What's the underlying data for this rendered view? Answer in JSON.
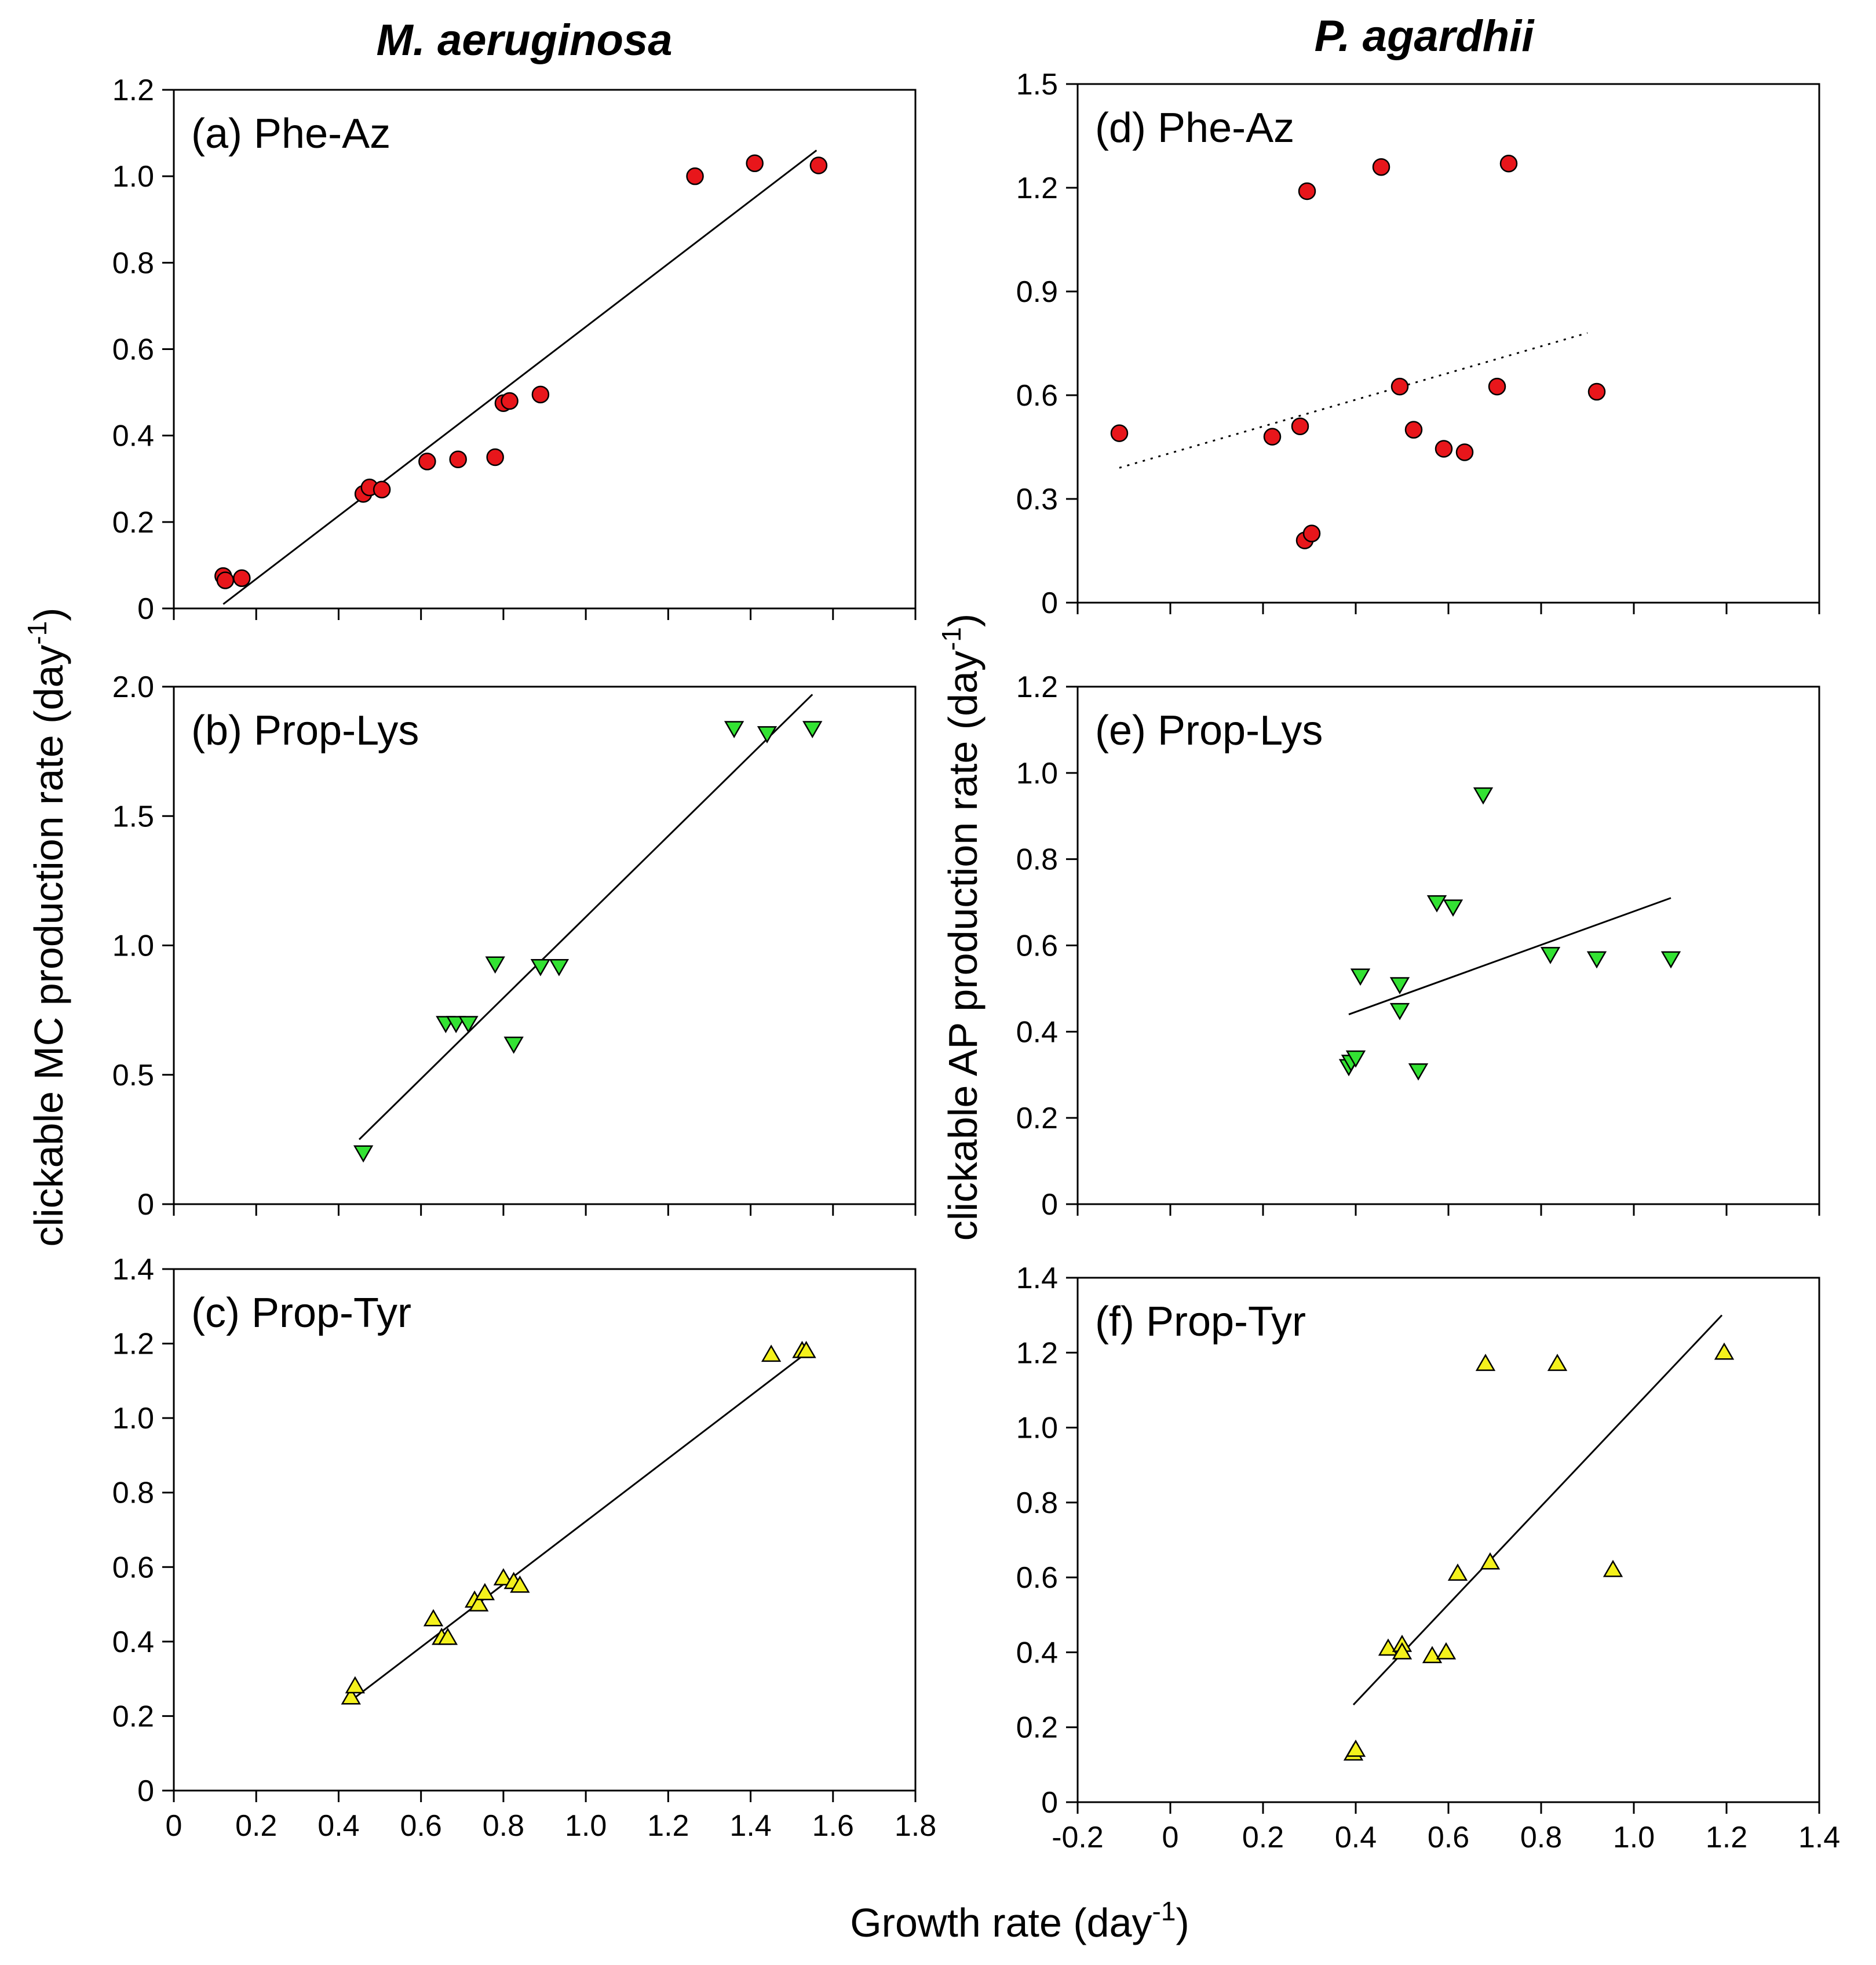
{
  "figure": {
    "column_titles": [
      "M. aeruginosa",
      "P. agardhii"
    ],
    "left_ylabel": {
      "text": "clickable MC production rate (day",
      "sup": "-1",
      "close": ")"
    },
    "right_ylabel": {
      "text": "clickable AP production rate (day",
      "sup": "-1",
      "close": ")"
    },
    "xlabel": {
      "text": "Growth rate (day",
      "sup": "-1",
      "close": ")"
    },
    "colors": {
      "phe_az": "#e8161b",
      "prop_lys": "#33e233",
      "prop_tyr": "#f4f11c"
    }
  },
  "chart_data": [
    {
      "id": "a",
      "type": "scatter",
      "title": "(a) Phe-Az",
      "marker": "circle",
      "color": "#e8161b",
      "xlim": [
        0,
        1.8
      ],
      "ylim": [
        0,
        1.2
      ],
      "xticks": [
        0,
        0.2,
        0.4,
        0.6,
        0.8,
        1.0,
        1.2,
        1.4,
        1.6,
        1.8
      ],
      "xtick_labels": [],
      "yticks": [
        0,
        0.2,
        0.4,
        0.6,
        0.8,
        1.0,
        1.2
      ],
      "ytick_labels": [
        "0",
        "0.2",
        "0.4",
        "0.6",
        "0.8",
        "1.0",
        "1.2"
      ],
      "x": [
        0.12,
        0.125,
        0.165,
        0.46,
        0.475,
        0.505,
        0.615,
        0.69,
        0.78,
        0.8,
        0.815,
        0.89,
        1.265,
        1.41,
        1.565
      ],
      "y": [
        0.075,
        0.065,
        0.07,
        0.265,
        0.28,
        0.275,
        0.34,
        0.345,
        0.35,
        0.475,
        0.48,
        0.495,
        1.0,
        1.03,
        1.025
      ],
      "fit": {
        "style": "solid",
        "x": [
          0.12,
          1.56
        ],
        "y": [
          0.01,
          1.06
        ]
      }
    },
    {
      "id": "b",
      "type": "scatter",
      "title": "(b) Prop-Lys",
      "marker": "triangle-down",
      "color": "#33e233",
      "xlim": [
        0,
        1.8
      ],
      "ylim": [
        0,
        2.0
      ],
      "xticks": [
        0,
        0.2,
        0.4,
        0.6,
        0.8,
        1.0,
        1.2,
        1.4,
        1.6,
        1.8
      ],
      "xtick_labels": [],
      "yticks": [
        0,
        0.5,
        1.0,
        1.5,
        2.0
      ],
      "ytick_labels": [
        "0",
        "0.5",
        "1.0",
        "1.5",
        "2.0"
      ],
      "x": [
        0.46,
        0.66,
        0.685,
        0.715,
        0.78,
        0.825,
        0.89,
        0.935,
        1.36,
        1.44,
        1.55
      ],
      "y": [
        0.2,
        0.7,
        0.7,
        0.7,
        0.93,
        0.62,
        0.92,
        0.92,
        1.84,
        1.82,
        1.84
      ],
      "fit": {
        "style": "solid",
        "x": [
          0.45,
          1.55
        ],
        "y": [
          0.25,
          1.97
        ]
      }
    },
    {
      "id": "c",
      "type": "scatter",
      "title": "(c) Prop-Tyr",
      "marker": "triangle-up",
      "color": "#f4f11c",
      "xlim": [
        0,
        1.8
      ],
      "ylim": [
        0,
        1.4
      ],
      "xticks": [
        0,
        0.2,
        0.4,
        0.6,
        0.8,
        1.0,
        1.2,
        1.4,
        1.6,
        1.8
      ],
      "xtick_labels": [
        "0",
        "0.2",
        "0.4",
        "0.6",
        "0.8",
        "1.0",
        "1.2",
        "1.4",
        "1.6",
        "1.8"
      ],
      "yticks": [
        0,
        0.2,
        0.4,
        0.6,
        0.8,
        1.0,
        1.2,
        1.4
      ],
      "ytick_labels": [
        "0",
        "0.2",
        "0.4",
        "0.6",
        "0.8",
        "1.0",
        "1.2",
        "1.4"
      ],
      "x": [
        0.43,
        0.44,
        0.63,
        0.65,
        0.665,
        0.73,
        0.74,
        0.755,
        0.8,
        0.825,
        0.84,
        1.45,
        1.525,
        1.535
      ],
      "y": [
        0.25,
        0.28,
        0.46,
        0.41,
        0.41,
        0.51,
        0.5,
        0.53,
        0.57,
        0.56,
        0.55,
        1.17,
        1.18,
        1.18
      ],
      "fit": {
        "style": "solid",
        "x": [
          0.44,
          1.53
        ],
        "y": [
          0.25,
          1.17
        ]
      }
    },
    {
      "id": "d",
      "type": "scatter",
      "title": "(d) Phe-Az",
      "marker": "circle",
      "color": "#e8161b",
      "xlim": [
        -0.2,
        1.4
      ],
      "ylim": [
        0,
        1.5
      ],
      "xticks": [
        -0.2,
        0,
        0.2,
        0.4,
        0.6,
        0.8,
        1.0,
        1.2,
        1.4
      ],
      "xtick_labels": [],
      "yticks": [
        0,
        0.3,
        0.6,
        0.9,
        1.2,
        1.5
      ],
      "ytick_labels": [
        "0",
        "0.3",
        "0.6",
        "0.9",
        "1.2",
        "1.5"
      ],
      "x": [
        -0.11,
        0.22,
        0.28,
        0.29,
        0.295,
        0.305,
        0.455,
        0.495,
        0.525,
        0.59,
        0.635,
        0.705,
        0.73,
        0.92
      ],
      "y": [
        0.49,
        0.48,
        0.51,
        0.18,
        1.19,
        0.2,
        1.26,
        0.625,
        0.5,
        0.445,
        0.435,
        0.625,
        1.27,
        0.61
      ],
      "fit": {
        "style": "dotted",
        "x": [
          -0.11,
          0.9
        ],
        "y": [
          0.39,
          0.78
        ]
      }
    },
    {
      "id": "e",
      "type": "scatter",
      "title": "(e) Prop-Lys",
      "marker": "triangle-down",
      "color": "#33e233",
      "xlim": [
        -0.2,
        1.4
      ],
      "ylim": [
        0,
        1.2
      ],
      "xticks": [
        -0.2,
        0,
        0.2,
        0.4,
        0.6,
        0.8,
        1.0,
        1.2,
        1.4
      ],
      "xtick_labels": [],
      "yticks": [
        0,
        0.2,
        0.4,
        0.6,
        0.8,
        1.0,
        1.2
      ],
      "ytick_labels": [
        "0",
        "0.2",
        "0.4",
        "0.6",
        "0.8",
        "1.0",
        "1.2"
      ],
      "x": [
        0.385,
        0.39,
        0.4,
        0.41,
        0.495,
        0.495,
        0.535,
        0.575,
        0.61,
        0.675,
        0.82,
        0.92,
        1.08
      ],
      "y": [
        0.32,
        0.33,
        0.34,
        0.53,
        0.51,
        0.45,
        0.31,
        0.7,
        0.69,
        0.95,
        0.58,
        0.57,
        0.57
      ],
      "fit": {
        "style": "solid",
        "x": [
          0.385,
          1.08
        ],
        "y": [
          0.44,
          0.71
        ]
      }
    },
    {
      "id": "f",
      "type": "scatter",
      "title": "(f) Prop-Tyr",
      "marker": "triangle-up",
      "color": "#f4f11c",
      "xlim": [
        -0.2,
        1.4
      ],
      "ylim": [
        0,
        1.4
      ],
      "xticks": [
        -0.2,
        0,
        0.2,
        0.4,
        0.6,
        0.8,
        1.0,
        1.2,
        1.4
      ],
      "xtick_labels": [
        "-0.2",
        "0",
        "0.2",
        "0.4",
        "0.6",
        "0.8",
        "1.0",
        "1.2",
        "1.4"
      ],
      "yticks": [
        0,
        0.2,
        0.4,
        0.6,
        0.8,
        1.0,
        1.2,
        1.4
      ],
      "ytick_labels": [
        "0",
        "0.2",
        "0.4",
        "0.6",
        "0.8",
        "1.0",
        "1.2",
        "1.4"
      ],
      "x": [
        0.395,
        0.4,
        0.47,
        0.5,
        0.5,
        0.565,
        0.595,
        0.62,
        0.68,
        0.69,
        0.835,
        0.955,
        1.195
      ],
      "y": [
        0.13,
        0.14,
        0.41,
        0.42,
        0.4,
        0.39,
        0.4,
        0.61,
        1.17,
        0.64,
        1.17,
        0.62,
        1.2
      ],
      "fit": {
        "style": "solid",
        "x": [
          0.395,
          1.19
        ],
        "y": [
          0.26,
          1.3
        ]
      }
    }
  ]
}
